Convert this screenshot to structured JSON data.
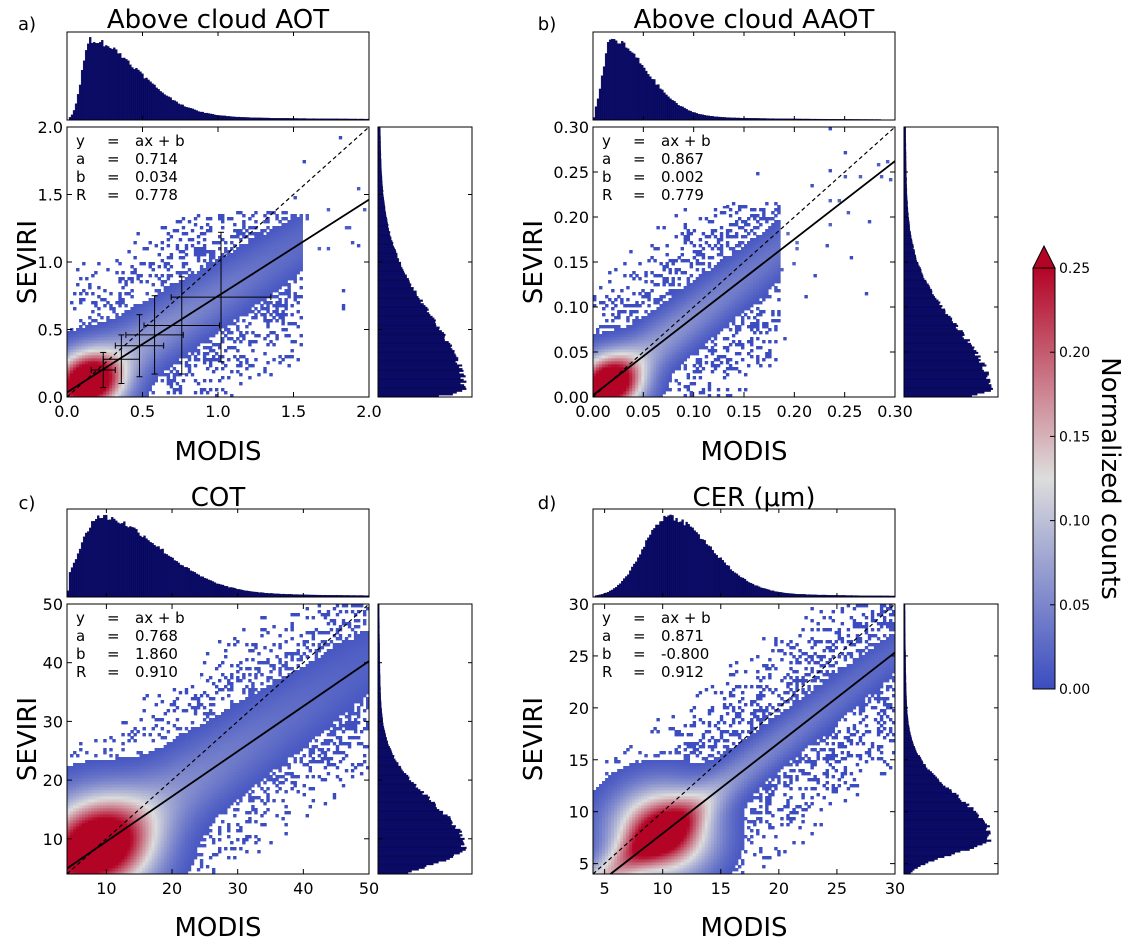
{
  "chart_data": [
    {
      "type": "heatmap",
      "panel_label": "a)",
      "title": "Above cloud AOT",
      "xlabel": "MODIS",
      "ylabel": "SEVIRI",
      "xlim": [
        0,
        2.0
      ],
      "ylim": [
        0,
        2.0
      ],
      "xticks": [
        "0.0",
        "0.5",
        "1.0",
        "1.5",
        "2.0"
      ],
      "yticks": [
        "0.0",
        "0.5",
        "1.0",
        "1.5",
        "2.0"
      ],
      "tick_values": [
        0,
        0.5,
        1.0,
        1.5,
        2.0
      ],
      "fit": {
        "equation": "ax + b",
        "a": "0.714",
        "b": "0.034",
        "R": "0.778",
        "slope": 0.714,
        "intercept": 0.034
      },
      "one_to_one_line": true,
      "error_bars": [
        {
          "x": 0.24,
          "y": 0.2,
          "xerr": 0.08,
          "yerr": 0.13
        },
        {
          "x": 0.36,
          "y": 0.28,
          "xerr": 0.12,
          "yerr": 0.18
        },
        {
          "x": 0.48,
          "y": 0.38,
          "xerr": 0.16,
          "yerr": 0.23
        },
        {
          "x": 0.58,
          "y": 0.46,
          "xerr": 0.19,
          "yerr": 0.29
        },
        {
          "x": 0.76,
          "y": 0.53,
          "xerr": 0.25,
          "yerr": 0.36
        },
        {
          "x": 1.02,
          "y": 0.74,
          "xerr": 0.33,
          "yerr": 0.48
        }
      ],
      "density_model": {
        "core": [
          0.16,
          0.12
        ],
        "spread": 0.42,
        "ridge_sigma": 0.16,
        "max_x": 1.55,
        "max_y": 1.38
      },
      "top_hist": {
        "type": "skewed",
        "peak": 0.15,
        "rise": 0.05,
        "fall": 0.32
      },
      "right_hist": {
        "type": "skewed",
        "peak": 0.05,
        "rise": 0.05,
        "fall": 0.55
      }
    },
    {
      "type": "heatmap",
      "panel_label": "b)",
      "title": "Above cloud AAOT",
      "xlabel": "MODIS",
      "ylabel": "SEVIRI",
      "xlim": [
        0,
        0.3
      ],
      "ylim": [
        0,
        0.3
      ],
      "xticks": [
        "0.00",
        "0.05",
        "0.10",
        "0.15",
        "0.20",
        "0.25",
        "0.30"
      ],
      "yticks": [
        "0.00",
        "0.05",
        "0.10",
        "0.15",
        "0.20",
        "0.25",
        "0.30"
      ],
      "tick_values": [
        0,
        0.05,
        0.1,
        0.15,
        0.2,
        0.25,
        0.3
      ],
      "fit": {
        "equation": "ax + b",
        "a": "0.867",
        "b": "0.002",
        "R": "0.779",
        "slope": 0.867,
        "intercept": 0.002
      },
      "one_to_one_line": true,
      "error_bars": [],
      "density_model": {
        "core": [
          0.018,
          0.016
        ],
        "spread": 0.06,
        "ridge_sigma": 0.022,
        "max_x": 0.185,
        "max_y": 0.215
      },
      "top_hist": {
        "type": "skewed",
        "peak": 0.018,
        "rise": 0.008,
        "fall": 0.035
      },
      "right_hist": {
        "type": "skewed",
        "peak": 0.008,
        "rise": 0.01,
        "fall": 0.07
      }
    },
    {
      "type": "heatmap",
      "panel_label": "c)",
      "title": "COT",
      "xlabel": "MODIS",
      "ylabel": "SEVIRI",
      "xlim": [
        4,
        50
      ],
      "ylim": [
        4,
        50
      ],
      "xticks": [
        "10",
        "20",
        "30",
        "40",
        "50"
      ],
      "yticks": [
        "10",
        "20",
        "30",
        "40",
        "50"
      ],
      "tick_values": [
        10,
        20,
        30,
        40,
        50
      ],
      "fit": {
        "equation": "ax + b",
        "a": "0.768",
        "b": "1.860",
        "R": "0.910",
        "slope": 0.768,
        "intercept": 1.86
      },
      "one_to_one_line": true,
      "error_bars": [],
      "density_model": {
        "core": [
          9,
          9
        ],
        "spread": 16,
        "ridge_sigma": 5,
        "max_x": 50,
        "max_y": 50
      },
      "top_hist": {
        "type": "skewed",
        "peak": 9,
        "rise": 3,
        "fall": 9
      },
      "right_hist": {
        "type": "skewed",
        "peak": 8.5,
        "rise": 3,
        "fall": 8
      }
    },
    {
      "type": "heatmap",
      "panel_label": "d)",
      "title": "CER (μm)",
      "xlabel": "MODIS",
      "ylabel": "SEVIRI",
      "xlim": [
        4,
        30
      ],
      "ylim": [
        4,
        30
      ],
      "xticks": [
        "5",
        "10",
        "15",
        "20",
        "25",
        "30"
      ],
      "yticks": [
        "5",
        "10",
        "15",
        "20",
        "25",
        "30"
      ],
      "tick_values": [
        5,
        10,
        15,
        20,
        25,
        30
      ],
      "fit": {
        "equation": "ax + b",
        "a": "0.871",
        "b": "-0.800",
        "R": "0.912",
        "slope": 0.871,
        "intercept": -0.8
      },
      "one_to_one_line": true,
      "error_bars": [],
      "density_model": {
        "core": [
          10,
          8
        ],
        "spread": 8,
        "ridge_sigma": 1.6,
        "max_x": 30,
        "max_y": 30
      },
      "top_hist": {
        "type": "skewed",
        "peak": 10.5,
        "rise": 2.2,
        "fall": 3.6
      },
      "right_hist": {
        "type": "skewed",
        "peak": 7.5,
        "rise": 1.5,
        "fall": 4
      }
    }
  ],
  "colorbar": {
    "label": "Normalized counts",
    "range": [
      0,
      0.25
    ],
    "ticks": [
      "0.00",
      "0.05",
      "0.10",
      "0.15",
      "0.20",
      "0.25"
    ],
    "tick_values": [
      0,
      0.05,
      0.1,
      0.15,
      0.2,
      0.25
    ],
    "colormap": "coolwarm",
    "extend": "max"
  },
  "colors": {
    "hist_fill": "#0b0b6b",
    "hist_edge": "#000040",
    "cold": "#3b4cc0",
    "mid": "#dddddd",
    "hot": "#b40426",
    "line": "#000000"
  }
}
